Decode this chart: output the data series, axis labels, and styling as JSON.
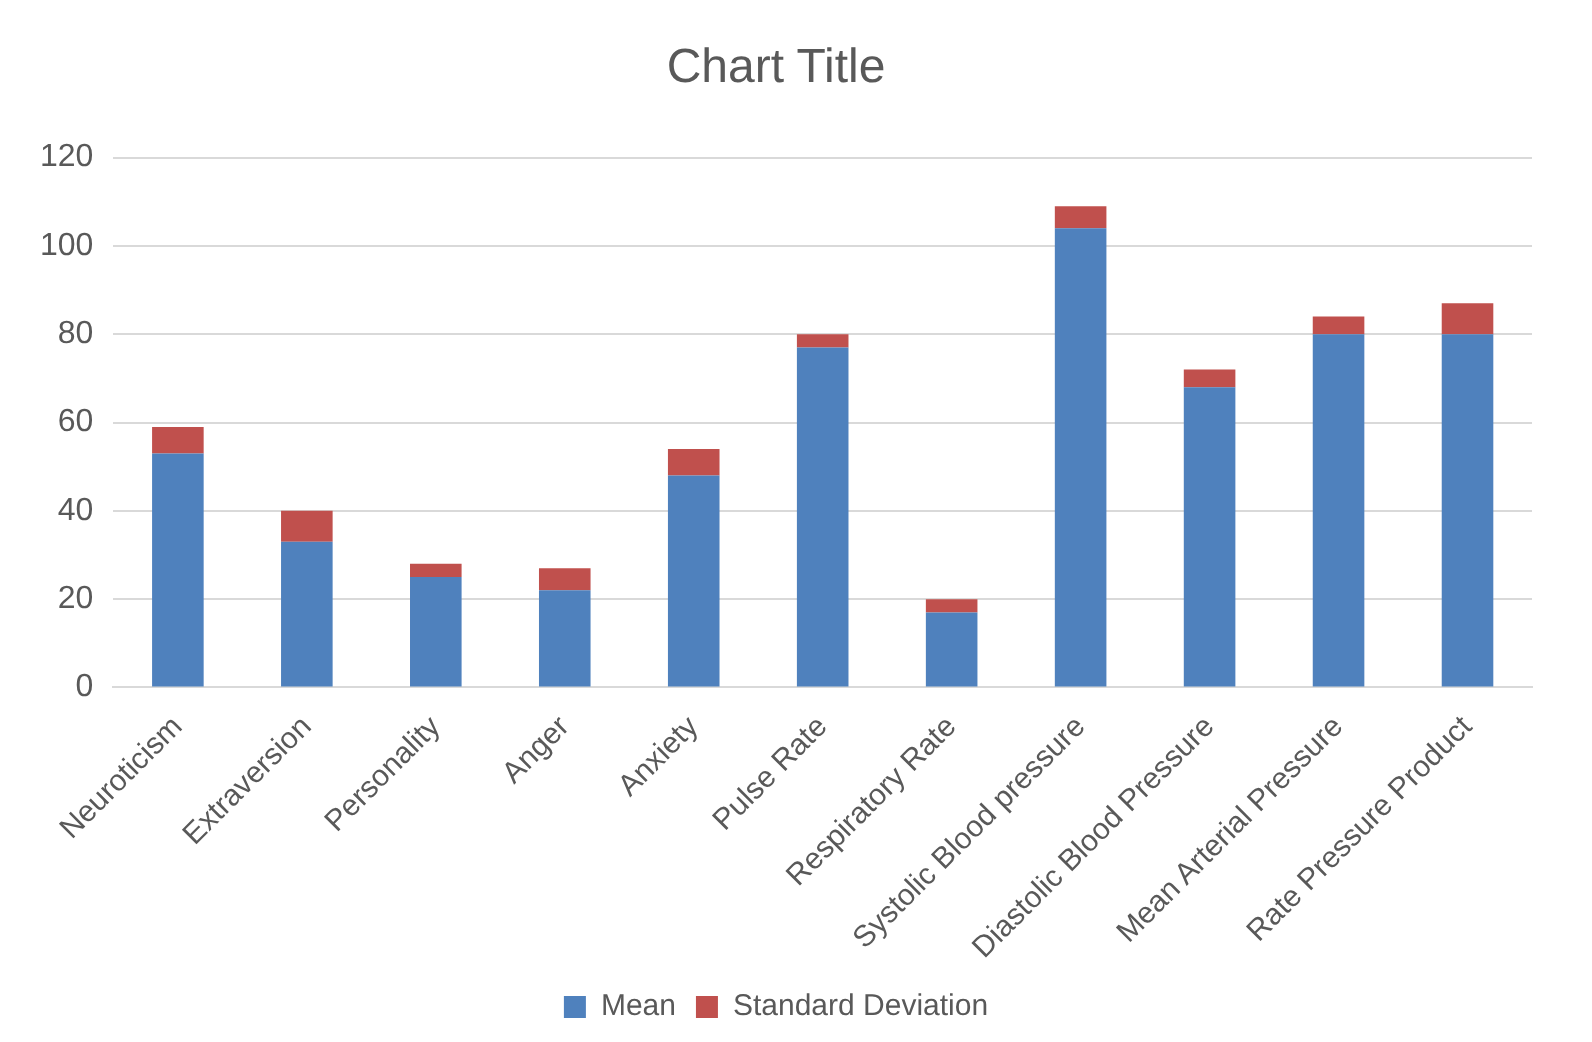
{
  "chart_data": {
    "type": "bar",
    "title": "Chart Title",
    "stacked": true,
    "categories": [
      "Neuroticism",
      "Extraversion",
      "Personality",
      "Anger",
      "Anxiety",
      "Pulse Rate",
      "Respiratory Rate",
      "Systolic Blood pressure",
      "Diastolic Blood Pressure",
      "Mean Arterial Pressure",
      "Rate Pressure Product"
    ],
    "series": [
      {
        "name": "Mean",
        "color": "#4f81bd",
        "values": [
          53,
          33,
          25,
          22,
          48,
          77,
          17,
          104,
          68,
          80,
          80
        ]
      },
      {
        "name": "Standard Deviation",
        "color": "#c0504d",
        "values": [
          6,
          7,
          3,
          5,
          6,
          3,
          3,
          5,
          4,
          4,
          7
        ]
      }
    ],
    "ylim": [
      0,
      120
    ],
    "yticks": [
      0,
      20,
      40,
      60,
      80,
      100,
      120
    ],
    "grid": "y",
    "legend": "bottom"
  }
}
